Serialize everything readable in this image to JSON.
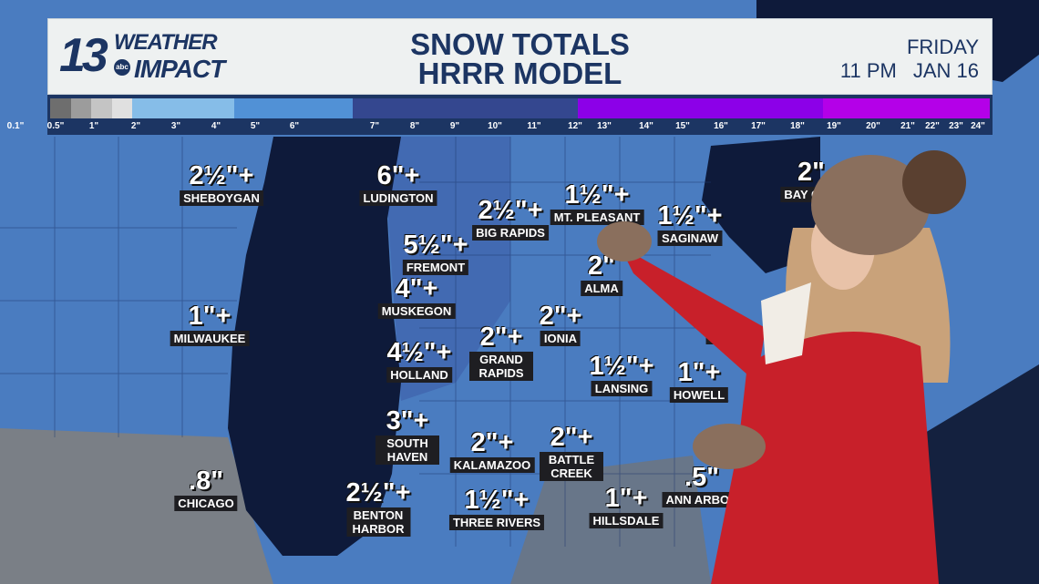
{
  "header": {
    "logo": {
      "number": "13",
      "line1": "WEATHER",
      "line2": "IMPACT",
      "network": "abc"
    },
    "title_line1": "SNOW TOTALS",
    "title_line2": "HRRR MODEL",
    "day": "FRIDAY",
    "time": "11 PM",
    "date": "JAN 16"
  },
  "scale": {
    "colors": [
      "#6e6e6e",
      "#9c9c9c",
      "#c4c4c4",
      "#e0e0e0",
      "#86bde8",
      "#5191d6",
      "#34478f",
      "#8c00e8",
      "#b400e8"
    ],
    "ticks": [
      "0.1\"",
      "0.5\"",
      "1\"",
      "2\"",
      "3\"",
      "4\"",
      "5\"",
      "6\"",
      "7\"",
      "8\"",
      "9\"",
      "10\"",
      "11\"",
      "12\"",
      "13\"",
      "14\"",
      "15\"",
      "16\"",
      "17\"",
      "18\"",
      "19\"",
      "20\"",
      "21\"",
      "22\"",
      "23\"",
      "24\""
    ]
  },
  "locations": [
    {
      "amount": "2½\"+",
      "city": "SHEBOYGAN"
    },
    {
      "amount": "6\"+",
      "city": "LUDINGTON"
    },
    {
      "amount": "2½\"+",
      "city": "BIG RAPIDS"
    },
    {
      "amount": "5½\"+",
      "city": "FREMONT"
    },
    {
      "amount": "1½\"+",
      "city": "MT. PLEASANT"
    },
    {
      "amount": "1½\"+",
      "city": "SAGINAW"
    },
    {
      "amount": "2\"",
      "city": "ALMA"
    },
    {
      "amount": "2\"",
      "city": "BAY CITY"
    },
    {
      "amount": "1\"+",
      "city": "MILWAUKEE"
    },
    {
      "amount": "4\"+",
      "city": "MUSKEGON"
    },
    {
      "amount": "2\"+",
      "city": "IONIA"
    },
    {
      "amount": "",
      "city": "FLINT"
    },
    {
      "amount": "4½\"+",
      "city": "HOLLAND"
    },
    {
      "amount": "2\"+",
      "city": "GRAND RAPIDS"
    },
    {
      "amount": "1½\"+",
      "city": "LANSING"
    },
    {
      "amount": "1\"+",
      "city": "HOWELL"
    },
    {
      "amount": "3\"+",
      "city": "SOUTH HAVEN"
    },
    {
      "amount": "2\"+",
      "city": "KALAMAZOO"
    },
    {
      "amount": "2\"+",
      "city": "BATTLE CREEK"
    },
    {
      "amount": ".8\"",
      "city": "CHICAGO"
    },
    {
      "amount": "2½\"+",
      "city": "BENTON HARBOR"
    },
    {
      "amount": "1½\"+",
      "city": "THREE RIVERS"
    },
    {
      "amount": "1\"+",
      "city": "HILLSDALE"
    },
    {
      "amount": ".5\"",
      "city": "ANN ARBOR"
    }
  ]
}
